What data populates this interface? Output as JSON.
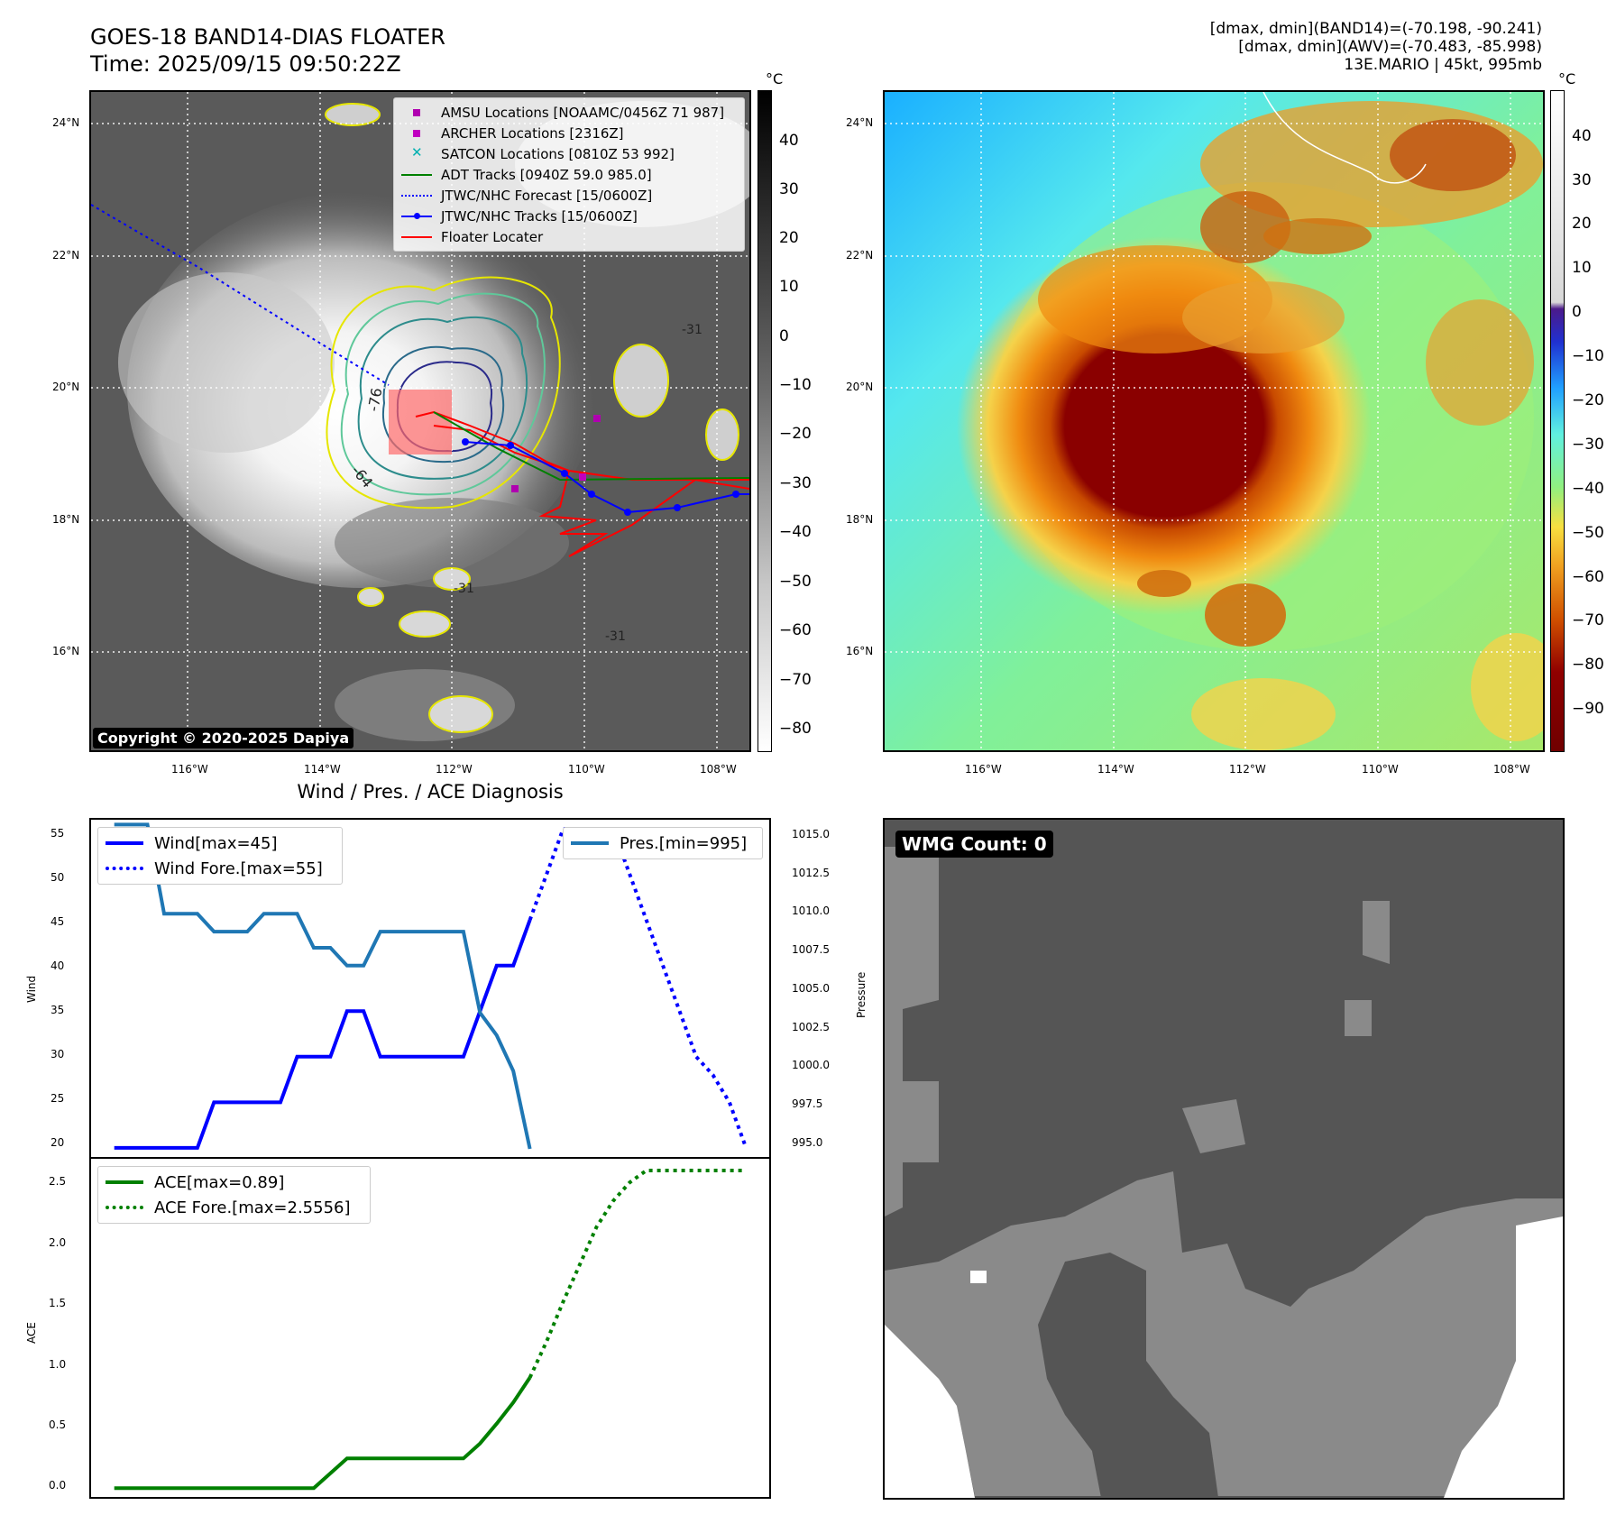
{
  "header": {
    "title_line1": "GOES-18 BAND14-DIAS FLOATER",
    "title_line2": "Time: 2025/09/15 09:50:22Z",
    "right_line1": "[dmax, dmin](BAND14)=(-70.198, -90.241)",
    "right_line2": "[dmax, dmin](AWV)=(-70.483, -85.998)",
    "right_line3": "13E.MARIO | 45kt, 995mb"
  },
  "map_axes": {
    "lat_labels": [
      "24°N",
      "22°N",
      "20°N",
      "18°N",
      "16°N"
    ],
    "lon_labels": [
      "116°W",
      "114°W",
      "112°W",
      "110°W",
      "108°W"
    ]
  },
  "ir_panel": {
    "colorbar_unit": "°C",
    "colorbar_ticks": [
      "40",
      "30",
      "20",
      "10",
      "0",
      "−10",
      "−20",
      "−30",
      "−40",
      "−50",
      "−60",
      "−70",
      "−80"
    ],
    "contour_labels": [
      "-76",
      "-64",
      "-31",
      "-31",
      "-31"
    ],
    "copyright": "Copyright © 2020-2025 Dapiya",
    "legend": [
      {
        "label": "AMSU Locations [NOAAMC/0456Z 71 987]",
        "symbol": "square",
        "color": "#b000b0"
      },
      {
        "label": "ARCHER Locations [2316Z]",
        "symbol": "square",
        "color": "#c000c0"
      },
      {
        "label": "SATCON Locations [0810Z 53 992]",
        "symbol": "x",
        "color": "#00b0b0"
      },
      {
        "label": "ADT Tracks [0940Z 59.0 985.0]",
        "symbol": "line",
        "color": "#008000"
      },
      {
        "label": "JTWC/NHC Forecast [15/0600Z]",
        "symbol": "dotted",
        "color": "#0000ff"
      },
      {
        "label": "JTWC/NHC Tracks [15/0600Z]",
        "symbol": "line-dot",
        "color": "#0000ff"
      },
      {
        "label": "Floater Locater",
        "symbol": "line",
        "color": "#ff0000"
      }
    ]
  },
  "wv_panel": {
    "colorbar_unit": "°C",
    "colorbar_ticks": [
      "40",
      "30",
      "20",
      "10",
      "0",
      "−10",
      "−20",
      "−30",
      "−40",
      "−50",
      "−60",
      "−70",
      "−80",
      "−90"
    ]
  },
  "diagnosis": {
    "title": "Wind / Pres. / ACE Diagnosis",
    "wind_ylabel": "Wind",
    "pres_ylabel": "Pressure",
    "ace_ylabel": "ACE",
    "wind_ticks": [
      "55",
      "50",
      "45",
      "40",
      "35",
      "30",
      "25",
      "20"
    ],
    "pres_ticks": [
      "1015.0",
      "1012.5",
      "1010.0",
      "1007.5",
      "1005.0",
      "1002.5",
      "1000.0",
      "997.5",
      "995.0"
    ],
    "ace_ticks": [
      "2.5",
      "2.0",
      "1.5",
      "1.0",
      "0.5",
      "0.0"
    ],
    "legend_wind": "Wind[max=45]",
    "legend_wind_fore": "Wind Fore.[max=55]",
    "legend_pres": "Pres.[min=995]",
    "legend_ace": "ACE[max=0.89]",
    "legend_ace_fore": "ACE Fore.[max=2.5556]",
    "colors": {
      "wind": "#0000ff",
      "pres": "#1f77b4",
      "ace": "#008000"
    }
  },
  "wmg_panel": {
    "label": "WMG Count: 0"
  },
  "chart_data": [
    {
      "type": "line",
      "title": "Wind / Pres. / ACE Diagnosis",
      "ylabel": "Wind",
      "ylim": [
        19,
        56
      ],
      "x": [
        0,
        1,
        2,
        3,
        4,
        5,
        6,
        7,
        8,
        9,
        10,
        11,
        12,
        13,
        14,
        15,
        16,
        17,
        18,
        19,
        20,
        21,
        22,
        23,
        24,
        25,
        26,
        27,
        28,
        29,
        30,
        31,
        32,
        33,
        34,
        35,
        36,
        37,
        38
      ],
      "series": [
        {
          "name": "Wind[max=45]",
          "x": [
            0,
            1,
            2,
            3,
            4,
            5,
            6,
            7,
            8,
            9,
            10,
            11,
            12,
            13,
            14,
            15,
            16,
            17,
            18,
            19,
            20,
            21,
            22,
            23,
            24,
            25
          ],
          "values": [
            20,
            20,
            20,
            20,
            20,
            20,
            25,
            25,
            25,
            25,
            25,
            30,
            30,
            30,
            35,
            35,
            30,
            30,
            30,
            30,
            30,
            30,
            35,
            40,
            40,
            45
          ]
        },
        {
          "name": "Wind Fore.[max=55]",
          "x": [
            25,
            26,
            27,
            28,
            29,
            30,
            31,
            32,
            33,
            34,
            35,
            36,
            37,
            38
          ],
          "values": [
            45,
            50,
            55,
            55,
            55,
            55,
            50,
            45,
            40,
            35,
            30,
            28,
            25,
            20
          ]
        }
      ]
    },
    {
      "type": "line",
      "ylabel": "Pressure",
      "ylim": [
        994.5,
        1015.3
      ],
      "series": [
        {
          "name": "Pres.[min=995]",
          "x": [
            0,
            1,
            2,
            3,
            4,
            5,
            6,
            7,
            8,
            9,
            10,
            11,
            12,
            13,
            14,
            15,
            16,
            17,
            18,
            19,
            20,
            21,
            22,
            23,
            24,
            25
          ],
          "values": [
            1015,
            1015,
            1015,
            1009.5,
            1009.5,
            1009.5,
            1008.4,
            1008.4,
            1008.4,
            1009.5,
            1009.5,
            1009.5,
            1007.4,
            1007.4,
            1006.3,
            1006.3,
            1008.4,
            1008.4,
            1008.4,
            1008.4,
            1008.4,
            1008.4,
            1003.4,
            1002,
            999.8,
            995
          ]
        }
      ]
    },
    {
      "type": "line",
      "ylabel": "ACE",
      "ylim": [
        -0.07,
        2.65
      ],
      "series": [
        {
          "name": "ACE[max=0.89]",
          "x": [
            0,
            1,
            2,
            3,
            4,
            5,
            6,
            7,
            8,
            9,
            10,
            11,
            12,
            13,
            14,
            15,
            16,
            17,
            18,
            19,
            20,
            21,
            22,
            23,
            24,
            25
          ],
          "values": [
            0,
            0,
            0,
            0,
            0,
            0,
            0,
            0,
            0,
            0,
            0,
            0,
            0,
            0.12,
            0.24,
            0.24,
            0.24,
            0.24,
            0.24,
            0.24,
            0.24,
            0.24,
            0.36,
            0.52,
            0.69,
            0.89
          ]
        },
        {
          "name": "ACE Fore.[max=2.5556]",
          "x": [
            25,
            26,
            27,
            28,
            29,
            30,
            31,
            32,
            33,
            34,
            35,
            36,
            37,
            38
          ],
          "values": [
            0.89,
            1.18,
            1.5,
            1.8,
            2.1,
            2.31,
            2.46,
            2.5556,
            2.5556,
            2.5556,
            2.5556,
            2.5556,
            2.5556,
            2.5556
          ]
        }
      ]
    }
  ]
}
